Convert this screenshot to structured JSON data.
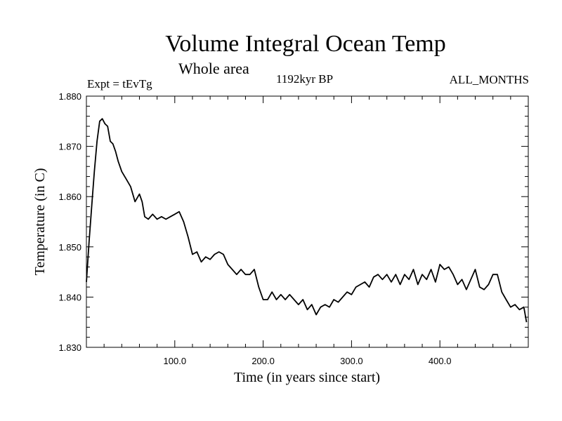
{
  "header": {
    "title": "Volume Integral Ocean Temp",
    "subtitle": "Whole area",
    "experiment": "Expt = tEvTg",
    "period": "1192kyr BP",
    "months": "ALL_MONTHS"
  },
  "chart_data": {
    "type": "line",
    "title": "Volume Integral Ocean Temp",
    "subtitle": "Whole area",
    "xlabel": "Time (in years since start)",
    "ylabel": "Temperature (in C)",
    "xlim": [
      0,
      500
    ],
    "ylim": [
      1.83,
      1.88
    ],
    "x_ticks": [
      100,
      200,
      300,
      400
    ],
    "x_tick_labels": [
      "100.0",
      "200.0",
      "300.0",
      "400.0"
    ],
    "y_ticks": [
      1.83,
      1.84,
      1.85,
      1.86,
      1.87,
      1.88
    ],
    "y_tick_labels": [
      "1.830",
      "1.840",
      "1.850",
      "1.860",
      "1.870",
      "1.880"
    ],
    "grid": false,
    "series": [
      {
        "name": "Volume integral ocean temperature",
        "color": "#000000",
        "x": [
          0,
          3,
          6,
          9,
          12,
          15,
          18,
          21,
          24,
          27,
          30,
          33,
          36,
          40,
          45,
          50,
          55,
          60,
          63,
          66,
          70,
          75,
          80,
          85,
          90,
          95,
          100,
          105,
          110,
          115,
          120,
          125,
          130,
          135,
          140,
          145,
          150,
          155,
          160,
          165,
          170,
          175,
          180,
          185,
          190,
          195,
          200,
          205,
          210,
          215,
          220,
          225,
          230,
          235,
          240,
          245,
          250,
          255,
          260,
          265,
          270,
          275,
          280,
          285,
          290,
          295,
          300,
          305,
          310,
          315,
          320,
          325,
          330,
          335,
          340,
          345,
          350,
          355,
          360,
          365,
          370,
          375,
          380,
          385,
          390,
          395,
          400,
          405,
          410,
          415,
          420,
          425,
          430,
          435,
          440,
          445,
          450,
          455,
          460,
          465,
          470,
          475,
          480,
          485,
          490,
          495,
          498
        ],
        "values": [
          1.843,
          1.851,
          1.858,
          1.865,
          1.871,
          1.875,
          1.8755,
          1.8745,
          1.874,
          1.871,
          1.8705,
          1.869,
          1.867,
          1.865,
          1.8635,
          1.862,
          1.859,
          1.8605,
          1.859,
          1.856,
          1.8555,
          1.8565,
          1.8555,
          1.856,
          1.8555,
          1.856,
          1.8565,
          1.857,
          1.855,
          1.852,
          1.8485,
          1.849,
          1.847,
          1.848,
          1.8475,
          1.8485,
          1.849,
          1.8485,
          1.8465,
          1.8455,
          1.8445,
          1.8455,
          1.8445,
          1.8445,
          1.8455,
          1.842,
          1.8395,
          1.8395,
          1.841,
          1.8395,
          1.8405,
          1.8395,
          1.8405,
          1.8395,
          1.8385,
          1.8395,
          1.8375,
          1.8385,
          1.8365,
          1.838,
          1.8385,
          1.838,
          1.8395,
          1.839,
          1.84,
          1.841,
          1.8405,
          1.842,
          1.8425,
          1.843,
          1.842,
          1.844,
          1.8445,
          1.8435,
          1.8445,
          1.843,
          1.8445,
          1.8425,
          1.8445,
          1.8435,
          1.8455,
          1.8425,
          1.8445,
          1.8435,
          1.8455,
          1.843,
          1.8465,
          1.8455,
          1.846,
          1.8445,
          1.8425,
          1.8435,
          1.8415,
          1.8435,
          1.8455,
          1.842,
          1.8415,
          1.8425,
          1.8445,
          1.8445,
          1.841,
          1.8395,
          1.838,
          1.8385,
          1.8375,
          1.838,
          1.835
        ]
      }
    ]
  }
}
